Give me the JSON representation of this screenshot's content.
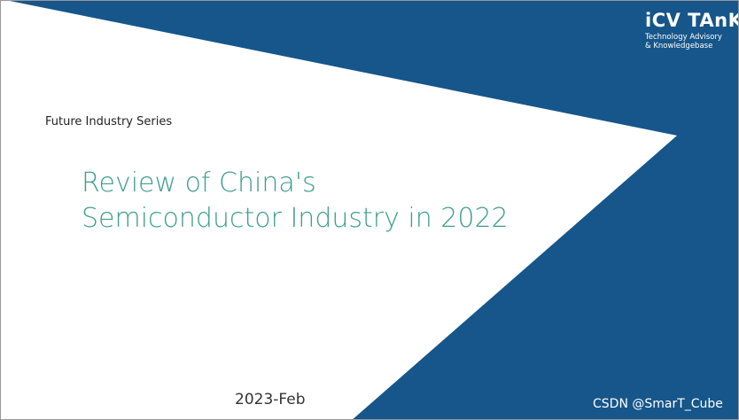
{
  "logo": {
    "name": "iCV TAnK",
    "line1": "Technology Advisory",
    "line2": "& Knowledgebase"
  },
  "series": "Future Industry Series",
  "title": {
    "line1": "Review of China's",
    "line2": "Semiconductor Industry in 2022"
  },
  "date": "2023-Feb",
  "watermark": "CSDN @SmarT_Cube"
}
